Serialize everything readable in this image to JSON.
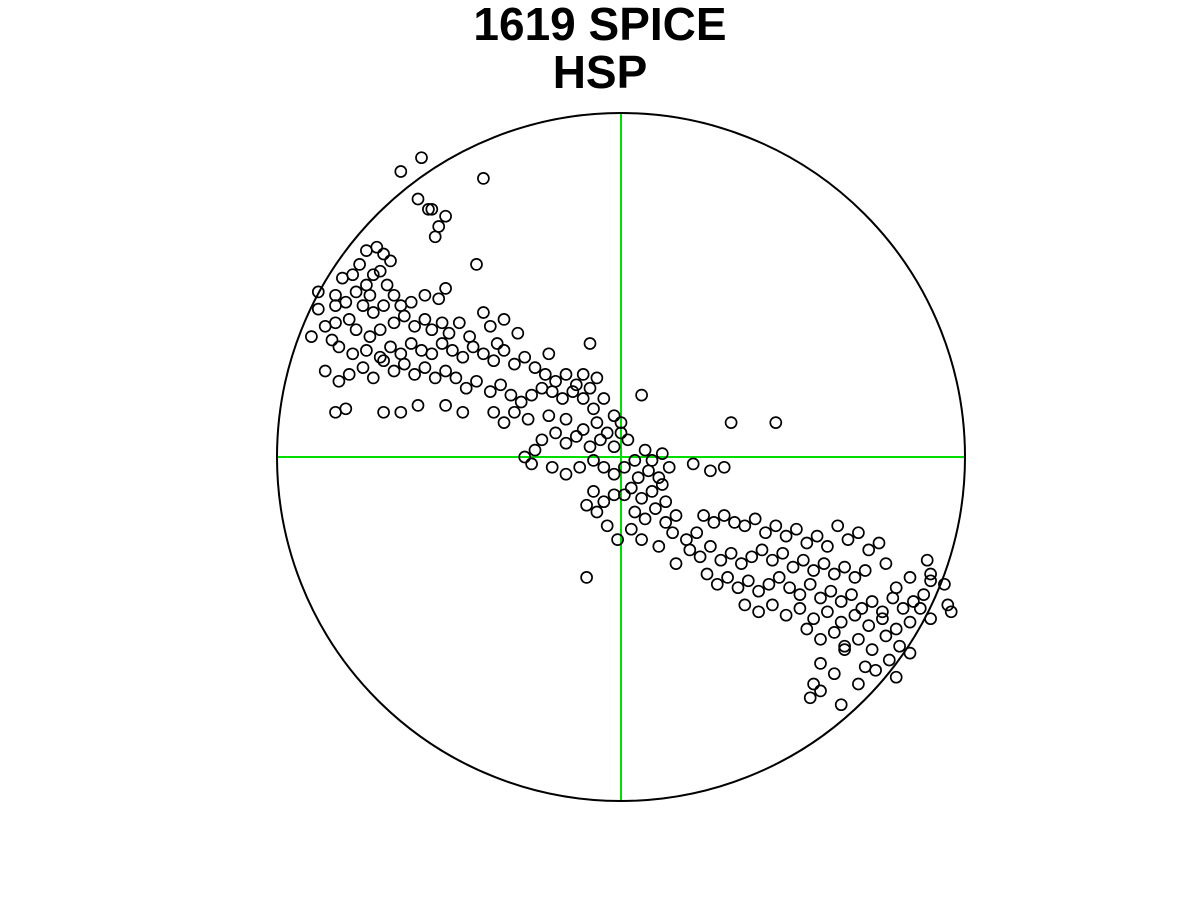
{
  "chart_data": {
    "type": "scatter",
    "title": [
      "1619 SPICE",
      "HSP"
    ],
    "xlim": [
      -1,
      1
    ],
    "ylim": [
      -1,
      1
    ],
    "grid": false,
    "colors": {
      "marker": "#000000",
      "primitive_circle": "#000000",
      "crosshair": "#00dd00",
      "background": "#ffffff"
    },
    "series": [
      {
        "marker": "open-circle",
        "points": [
          [
            -0.59,
            0.75
          ],
          [
            -0.56,
            0.72
          ],
          [
            -0.51,
            0.7
          ],
          [
            -0.53,
            0.67
          ],
          [
            -0.54,
            0.64
          ],
          [
            -0.71,
            0.61
          ],
          [
            -0.69,
            0.59
          ],
          [
            -0.74,
            0.6
          ],
          [
            -0.76,
            0.56
          ],
          [
            -0.67,
            0.57
          ],
          [
            -0.72,
            0.53
          ],
          [
            -0.68,
            0.5
          ],
          [
            -0.7,
            0.54
          ],
          [
            -0.78,
            0.53
          ],
          [
            -0.74,
            0.5
          ],
          [
            -0.81,
            0.52
          ],
          [
            -0.83,
            0.47
          ],
          [
            -0.77,
            0.48
          ],
          [
            -0.8,
            0.45
          ],
          [
            -0.73,
            0.47
          ],
          [
            -0.42,
            0.56
          ],
          [
            -0.51,
            0.49
          ],
          [
            -0.53,
            0.46
          ],
          [
            -0.57,
            0.47
          ],
          [
            -0.61,
            0.45
          ],
          [
            -0.64,
            0.44
          ],
          [
            -0.66,
            0.47
          ],
          [
            -0.69,
            0.44
          ],
          [
            -0.72,
            0.42
          ],
          [
            -0.75,
            0.44
          ],
          [
            -0.79,
            0.4
          ],
          [
            -0.83,
            0.39
          ],
          [
            -0.88,
            0.43
          ],
          [
            -0.86,
            0.38
          ],
          [
            -0.9,
            0.35
          ],
          [
            -0.84,
            0.34
          ],
          [
            -0.77,
            0.37
          ],
          [
            -0.73,
            0.35
          ],
          [
            -0.7,
            0.37
          ],
          [
            -0.66,
            0.39
          ],
          [
            -0.63,
            0.41
          ],
          [
            -0.6,
            0.38
          ],
          [
            -0.57,
            0.4
          ],
          [
            -0.55,
            0.37
          ],
          [
            -0.52,
            0.39
          ],
          [
            -0.5,
            0.36
          ],
          [
            -0.47,
            0.39
          ],
          [
            -0.44,
            0.35
          ],
          [
            -0.4,
            0.42
          ],
          [
            -0.38,
            0.38
          ],
          [
            -0.36,
            0.33
          ],
          [
            -0.34,
            0.4
          ],
          [
            -0.3,
            0.36
          ],
          [
            -0.09,
            0.33
          ],
          [
            -0.21,
            0.3
          ],
          [
            -0.82,
            0.32
          ],
          [
            -0.78,
            0.3
          ],
          [
            -0.74,
            0.31
          ],
          [
            -0.7,
            0.29
          ],
          [
            -0.67,
            0.32
          ],
          [
            -0.64,
            0.3
          ],
          [
            -0.61,
            0.33
          ],
          [
            -0.58,
            0.31
          ],
          [
            -0.55,
            0.3
          ],
          [
            -0.52,
            0.33
          ],
          [
            -0.49,
            0.31
          ],
          [
            -0.46,
            0.29
          ],
          [
            -0.43,
            0.32
          ],
          [
            -0.4,
            0.3
          ],
          [
            -0.37,
            0.28
          ],
          [
            -0.34,
            0.31
          ],
          [
            -0.31,
            0.27
          ],
          [
            -0.28,
            0.29
          ],
          [
            -0.25,
            0.26
          ],
          [
            -0.22,
            0.24
          ],
          [
            -0.19,
            0.22
          ],
          [
            -0.16,
            0.24
          ],
          [
            -0.13,
            0.21
          ],
          [
            -0.11,
            0.24
          ],
          [
            -0.09,
            0.2
          ],
          [
            -0.07,
            0.23
          ],
          [
            -0.05,
            0.17
          ],
          [
            -0.08,
            0.14
          ],
          [
            -0.11,
            0.17
          ],
          [
            -0.14,
            0.19
          ],
          [
            -0.17,
            0.17
          ],
          [
            -0.2,
            0.19
          ],
          [
            -0.23,
            0.2
          ],
          [
            -0.26,
            0.18
          ],
          [
            -0.29,
            0.16
          ],
          [
            -0.32,
            0.18
          ],
          [
            -0.35,
            0.21
          ],
          [
            -0.38,
            0.19
          ],
          [
            -0.42,
            0.22
          ],
          [
            -0.45,
            0.2
          ],
          [
            -0.48,
            0.23
          ],
          [
            -0.51,
            0.25
          ],
          [
            -0.54,
            0.23
          ],
          [
            -0.57,
            0.26
          ],
          [
            -0.6,
            0.24
          ],
          [
            -0.63,
            0.27
          ],
          [
            -0.66,
            0.25
          ],
          [
            -0.69,
            0.28
          ],
          [
            -0.72,
            0.23
          ],
          [
            -0.75,
            0.26
          ],
          [
            -0.79,
            0.24
          ],
          [
            -0.82,
            0.22
          ],
          [
            -0.86,
            0.25
          ],
          [
            -0.8,
            0.14
          ],
          [
            -0.83,
            0.13
          ],
          [
            -0.69,
            0.13
          ],
          [
            -0.64,
            0.13
          ],
          [
            -0.59,
            0.15
          ],
          [
            -0.51,
            0.15
          ],
          [
            -0.46,
            0.13
          ],
          [
            -0.37,
            0.13
          ],
          [
            -0.34,
            0.1
          ],
          [
            -0.31,
            0.13
          ],
          [
            -0.27,
            0.11
          ],
          [
            -0.21,
            0.12
          ],
          [
            -0.16,
            0.11
          ],
          [
            -0.11,
            0.08
          ],
          [
            -0.07,
            0.1
          ],
          [
            -0.04,
            0.07
          ],
          [
            0.0,
            0.1
          ],
          [
            0.0,
            0.07
          ],
          [
            0.02,
            0.05
          ],
          [
            -0.02,
            0.03
          ],
          [
            -0.06,
            0.05
          ],
          [
            -0.09,
            0.03
          ],
          [
            -0.13,
            0.06
          ],
          [
            -0.16,
            0.04
          ],
          [
            -0.19,
            0.07
          ],
          [
            -0.23,
            0.05
          ],
          [
            -0.25,
            0.02
          ],
          [
            -0.28,
            0.0
          ],
          [
            -0.26,
            -0.02
          ],
          [
            -0.2,
            -0.03
          ],
          [
            -0.16,
            -0.05
          ],
          [
            -0.12,
            -0.03
          ],
          [
            -0.08,
            -0.01
          ],
          [
            -0.05,
            -0.03
          ],
          [
            -0.02,
            -0.05
          ],
          [
            0.01,
            -0.03
          ],
          [
            0.04,
            -0.01
          ],
          [
            0.07,
            0.02
          ],
          [
            0.09,
            -0.01
          ],
          [
            0.12,
            0.01
          ],
          [
            0.14,
            -0.03
          ],
          [
            0.11,
            -0.06
          ],
          [
            0.08,
            -0.04
          ],
          [
            0.05,
            -0.06
          ],
          [
            0.03,
            -0.09
          ],
          [
            0.06,
            -0.12
          ],
          [
            0.09,
            -0.1
          ],
          [
            0.12,
            -0.08
          ],
          [
            0.13,
            -0.13
          ],
          [
            0.1,
            -0.15
          ],
          [
            0.07,
            -0.18
          ],
          [
            0.04,
            -0.16
          ],
          [
            0.01,
            -0.11
          ],
          [
            -0.02,
            -0.11
          ],
          [
            -0.05,
            -0.13
          ],
          [
            -0.08,
            -0.1
          ],
          [
            -0.1,
            -0.14
          ],
          [
            -0.07,
            -0.16
          ],
          [
            -0.04,
            -0.2
          ],
          [
            -0.01,
            -0.24
          ],
          [
            0.03,
            -0.21
          ],
          [
            0.06,
            -0.24
          ],
          [
            0.11,
            -0.26
          ],
          [
            0.13,
            -0.19
          ],
          [
            0.16,
            -0.17
          ],
          [
            0.15,
            -0.22
          ],
          [
            0.19,
            -0.24
          ],
          [
            0.22,
            -0.22
          ],
          [
            0.24,
            -0.17
          ],
          [
            0.27,
            -0.19
          ],
          [
            0.3,
            -0.17
          ],
          [
            0.33,
            -0.19
          ],
          [
            0.36,
            -0.2
          ],
          [
            0.39,
            -0.18
          ],
          [
            0.42,
            -0.22
          ],
          [
            0.45,
            -0.2
          ],
          [
            0.48,
            -0.23
          ],
          [
            0.51,
            -0.21
          ],
          [
            0.54,
            -0.25
          ],
          [
            0.57,
            -0.23
          ],
          [
            0.6,
            -0.26
          ],
          [
            0.63,
            -0.2
          ],
          [
            0.66,
            -0.24
          ],
          [
            0.69,
            -0.22
          ],
          [
            0.72,
            -0.27
          ],
          [
            0.75,
            -0.25
          ],
          [
            0.2,
            -0.27
          ],
          [
            0.23,
            -0.29
          ],
          [
            0.26,
            -0.26
          ],
          [
            0.29,
            -0.3
          ],
          [
            0.32,
            -0.28
          ],
          [
            0.35,
            -0.31
          ],
          [
            0.38,
            -0.29
          ],
          [
            0.41,
            -0.27
          ],
          [
            0.44,
            -0.3
          ],
          [
            0.47,
            -0.28
          ],
          [
            0.5,
            -0.32
          ],
          [
            0.53,
            -0.3
          ],
          [
            0.56,
            -0.33
          ],
          [
            0.59,
            -0.31
          ],
          [
            0.62,
            -0.34
          ],
          [
            0.65,
            -0.32
          ],
          [
            0.68,
            -0.35
          ],
          [
            0.71,
            -0.33
          ],
          [
            0.25,
            -0.34
          ],
          [
            0.28,
            -0.37
          ],
          [
            0.31,
            -0.35
          ],
          [
            0.34,
            -0.38
          ],
          [
            0.37,
            -0.36
          ],
          [
            0.4,
            -0.39
          ],
          [
            0.43,
            -0.37
          ],
          [
            0.46,
            -0.35
          ],
          [
            0.49,
            -0.38
          ],
          [
            0.52,
            -0.4
          ],
          [
            0.55,
            -0.37
          ],
          [
            0.58,
            -0.41
          ],
          [
            0.61,
            -0.39
          ],
          [
            0.64,
            -0.42
          ],
          [
            0.67,
            -0.4
          ],
          [
            0.7,
            -0.44
          ],
          [
            0.73,
            -0.42
          ],
          [
            0.76,
            -0.45
          ],
          [
            0.79,
            -0.41
          ],
          [
            0.82,
            -0.44
          ],
          [
            0.85,
            -0.42
          ],
          [
            0.88,
            -0.4
          ],
          [
            0.9,
            -0.36
          ],
          [
            0.84,
            -0.35
          ],
          [
            0.8,
            -0.38
          ],
          [
            0.36,
            -0.43
          ],
          [
            0.4,
            -0.45
          ],
          [
            0.44,
            -0.43
          ],
          [
            0.48,
            -0.46
          ],
          [
            0.52,
            -0.44
          ],
          [
            0.56,
            -0.47
          ],
          [
            0.6,
            -0.45
          ],
          [
            0.64,
            -0.48
          ],
          [
            0.68,
            -0.46
          ],
          [
            0.72,
            -0.49
          ],
          [
            0.76,
            -0.47
          ],
          [
            0.8,
            -0.5
          ],
          [
            0.84,
            -0.48
          ],
          [
            0.87,
            -0.44
          ],
          [
            0.9,
            -0.47
          ],
          [
            0.54,
            -0.5
          ],
          [
            0.58,
            -0.53
          ],
          [
            0.62,
            -0.51
          ],
          [
            0.65,
            -0.55
          ],
          [
            0.69,
            -0.53
          ],
          [
            0.73,
            -0.56
          ],
          [
            0.77,
            -0.52
          ],
          [
            0.81,
            -0.55
          ],
          [
            0.84,
            -0.57
          ],
          [
            0.78,
            -0.59
          ],
          [
            0.71,
            -0.61
          ],
          [
            0.65,
            -0.56
          ],
          [
            0.58,
            -0.6
          ],
          [
            0.62,
            -0.63
          ],
          [
            0.69,
            -0.66
          ],
          [
            0.74,
            -0.62
          ],
          [
            0.8,
            -0.64
          ],
          [
            0.56,
            -0.66
          ],
          [
            0.55,
            -0.7
          ],
          [
            0.58,
            -0.68
          ],
          [
            0.64,
            -0.72
          ],
          [
            0.9,
            -0.34
          ],
          [
            0.95,
            -0.43
          ],
          [
            0.96,
            -0.45
          ],
          [
            0.94,
            -0.37
          ],
          [
            0.89,
            -0.3
          ],
          [
            0.77,
            -0.31
          ],
          [
            0.21,
            -0.02
          ],
          [
            0.26,
            -0.04
          ],
          [
            0.3,
            -0.03
          ],
          [
            0.32,
            0.1
          ],
          [
            0.45,
            0.1
          ],
          [
            0.06,
            0.18
          ],
          [
            -0.02,
            0.12
          ],
          [
            0.16,
            -0.31
          ],
          [
            -0.1,
            -0.35
          ],
          [
            -0.64,
            0.83
          ],
          [
            -0.58,
            0.87
          ],
          [
            -0.55,
            0.72
          ],
          [
            -0.4,
            0.81
          ],
          [
            -0.83,
            0.44
          ],
          [
            -0.88,
            0.48
          ]
        ]
      }
    ]
  }
}
